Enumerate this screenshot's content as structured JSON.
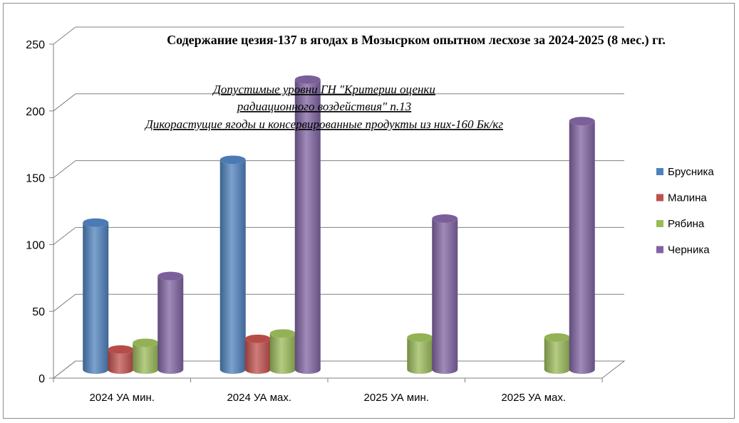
{
  "chart_data": {
    "type": "bar",
    "title": "Содержание цезия-137 в ягодах в  Мозысрком опытном лесхозе  за 2024-2025 (8 мес.) гг.",
    "annotation": [
      "Допустимые уровни ГН \"Критерии оценки",
      "радиационного воздействия\"  п.13",
      "Дикорастущие ягоды и консервированные продукты из них-160 Бк/кг"
    ],
    "categories": [
      "2024 УА мин.",
      "2024 УА мах.",
      "2025 УА мин.",
      "2025 УА мах."
    ],
    "series": [
      {
        "name": "Брусника",
        "color": "#4f81bd",
        "values": [
          110,
          157,
          null,
          null
        ]
      },
      {
        "name": "Малина",
        "color": "#c0504d",
        "values": [
          15,
          23,
          null,
          null
        ]
      },
      {
        "name": "Рябина",
        "color": "#9bbb59",
        "values": [
          20,
          27,
          24,
          24
        ]
      },
      {
        "name": "Черника",
        "color": "#8064a2",
        "values": [
          70,
          217,
          113,
          186
        ]
      }
    ],
    "ylim": [
      0,
      250
    ],
    "yticks": [
      0,
      50,
      100,
      150,
      200,
      250
    ],
    "grid": true,
    "legend_position": "right",
    "three_d": true
  }
}
